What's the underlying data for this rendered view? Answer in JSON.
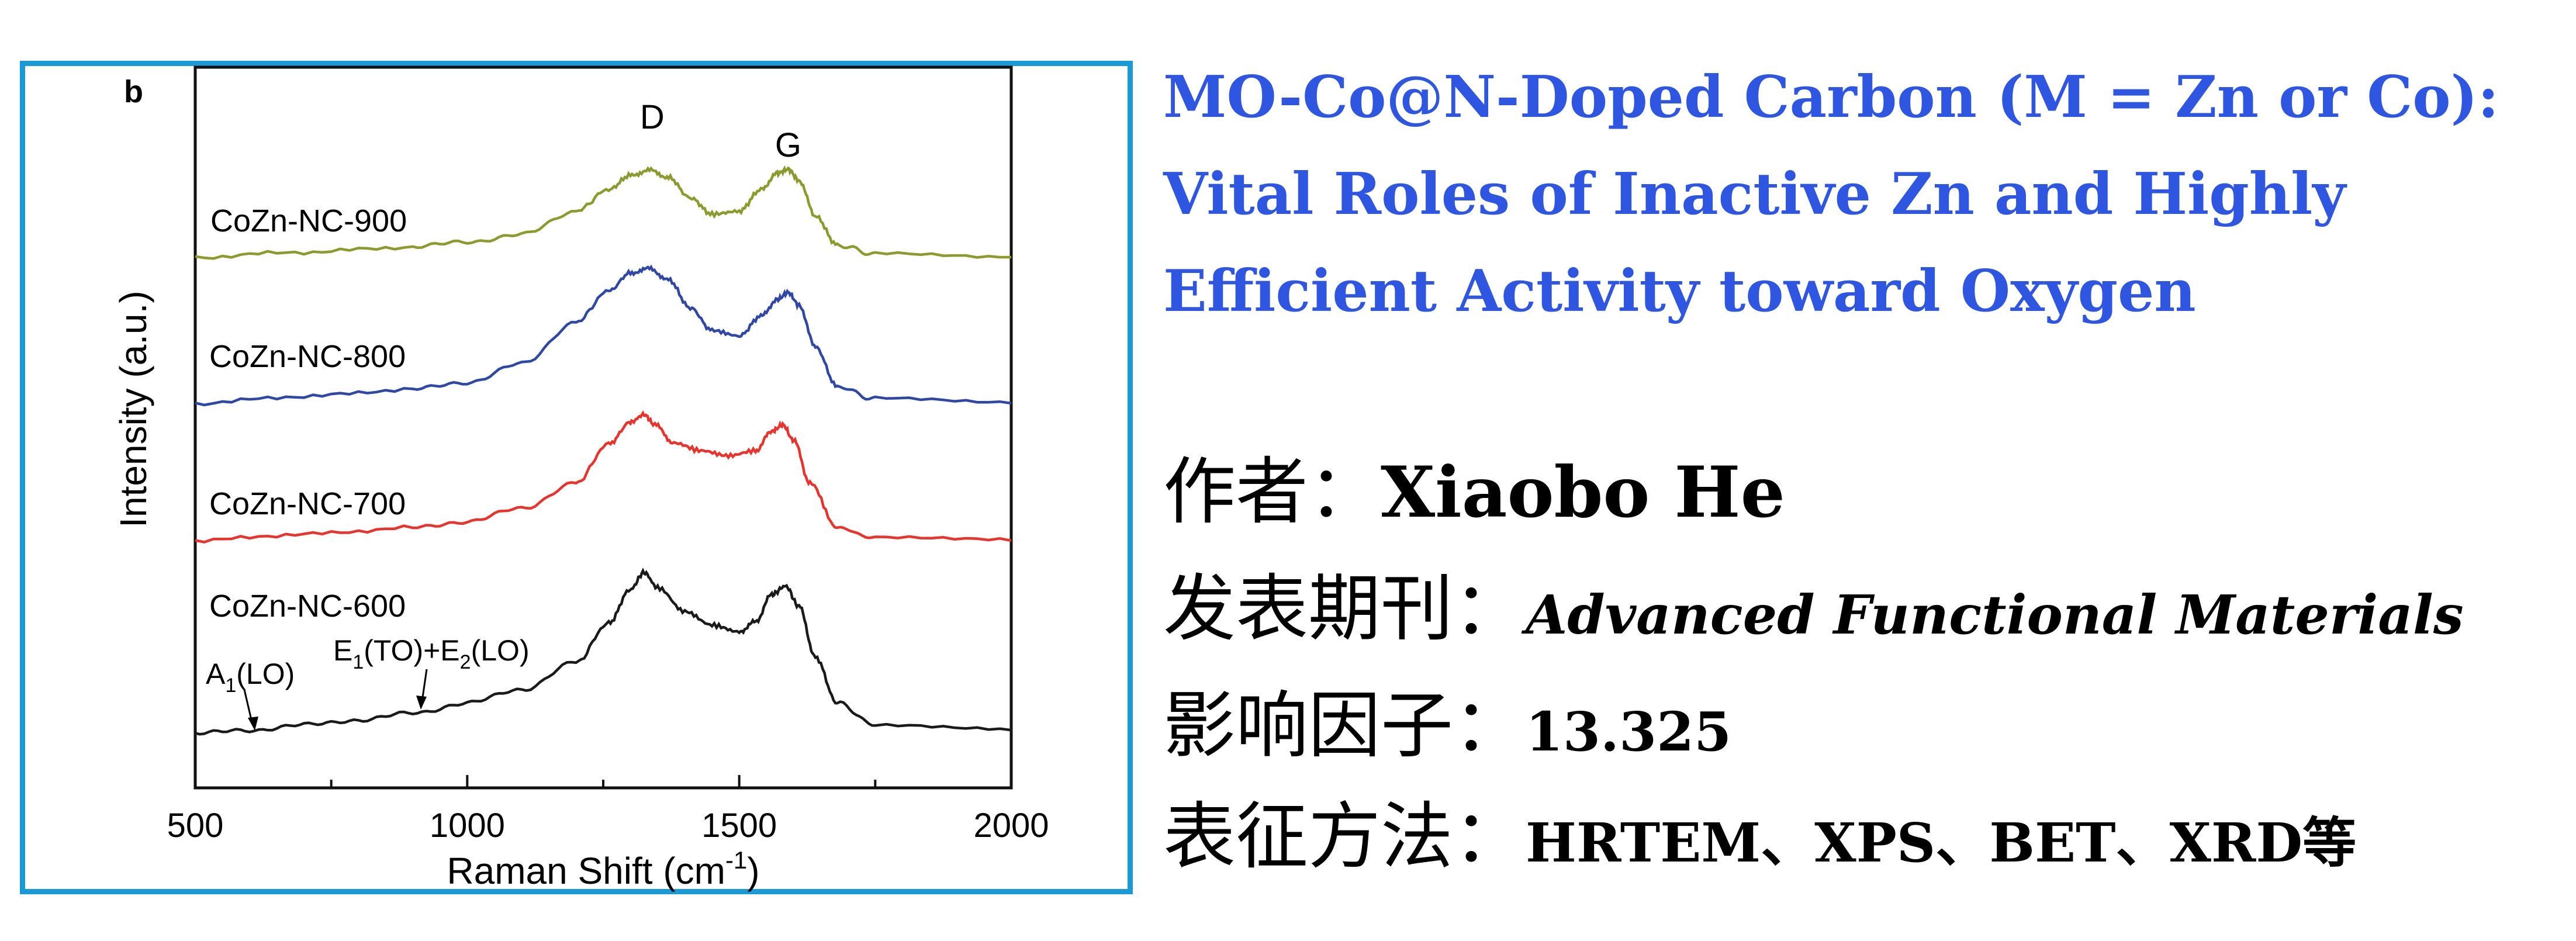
{
  "chart_data": {
    "type": "line",
    "panel_label": "b",
    "xlabel": "Raman Shift (cm",
    "xlabel_sup": "-1",
    "xlabel_tail": ")",
    "ylabel": "Intensity (a.u.)",
    "xlim": [
      500,
      2000
    ],
    "xticks": [
      "500",
      "1000",
      "1500",
      "2000"
    ],
    "peak_labels": [
      {
        "text": "D",
        "x": 1340
      },
      {
        "text": "G",
        "x": 1590
      }
    ],
    "annotation_1": {
      "main": "A",
      "sub": "1",
      "tail": "(LO)",
      "x": 600
    },
    "annotation_2": {
      "p1": "E",
      "s1": "1",
      "p2": "(TO)+E",
      "s2": "2",
      "p3": "(LO)",
      "x": 920
    },
    "series": [
      {
        "name": "CoZn-NC-900",
        "color": "#8c9a2e",
        "x": [
          500,
          700,
          900,
          1000,
          1100,
          1200,
          1260,
          1300,
          1335,
          1370,
          1410,
          1450,
          1500,
          1540,
          1570,
          1590,
          1610,
          1640,
          1680,
          1750,
          2000
        ],
        "y": [
          0.0,
          0.05,
          0.1,
          0.15,
          0.22,
          0.45,
          0.66,
          0.8,
          0.85,
          0.78,
          0.58,
          0.42,
          0.45,
          0.66,
          0.82,
          0.86,
          0.75,
          0.4,
          0.12,
          0.03,
          0.0
        ]
      },
      {
        "name": "CoZn-NC-800",
        "color": "#2f47a6",
        "x": [
          500,
          700,
          900,
          1000,
          1100,
          1200,
          1260,
          1300,
          1335,
          1370,
          1410,
          1450,
          1500,
          1540,
          1570,
          1590,
          1610,
          1640,
          1680,
          1750,
          2000
        ],
        "y": [
          0.0,
          0.05,
          0.1,
          0.15,
          0.28,
          0.58,
          0.8,
          0.93,
          0.96,
          0.88,
          0.68,
          0.52,
          0.48,
          0.62,
          0.74,
          0.79,
          0.7,
          0.4,
          0.12,
          0.03,
          0.0
        ]
      },
      {
        "name": "CoZn-NC-700",
        "color": "#e8342c",
        "x": [
          500,
          700,
          900,
          1000,
          1100,
          1200,
          1260,
          1300,
          1325,
          1345,
          1380,
          1430,
          1480,
          1530,
          1560,
          1580,
          1600,
          1630,
          1680,
          1750,
          2000
        ],
        "y": [
          0.0,
          0.05,
          0.1,
          0.15,
          0.25,
          0.45,
          0.75,
          0.92,
          0.98,
          0.9,
          0.76,
          0.7,
          0.66,
          0.7,
          0.85,
          0.9,
          0.78,
          0.45,
          0.1,
          0.02,
          0.0
        ]
      },
      {
        "name": "CoZn-NC-600",
        "color": "#1a1a1a",
        "x": [
          500,
          600,
          700,
          800,
          900,
          1000,
          1100,
          1200,
          1260,
          1300,
          1325,
          1350,
          1400,
          1450,
          1500,
          1530,
          1560,
          1585,
          1610,
          1640,
          1680,
          1750,
          2000
        ],
        "y": [
          0.0,
          0.02,
          0.05,
          0.08,
          0.12,
          0.18,
          0.26,
          0.42,
          0.65,
          0.85,
          0.95,
          0.86,
          0.72,
          0.64,
          0.6,
          0.66,
          0.82,
          0.87,
          0.75,
          0.45,
          0.18,
          0.05,
          0.02
        ]
      }
    ]
  },
  "info": {
    "title": "MO-Co@N-Doped Carbon (M = Zn or Co): Vital Roles of Inactive Zn and Highly Efficient Activity toward Oxygen",
    "author_label": "作者：",
    "author_value": "Xiaobo He",
    "journal_label": "发表期刊：",
    "journal_value": "Advanced Functional Materials",
    "impact_label": "影响因子：",
    "impact_value": "13.325",
    "methods_label": "表征方法：",
    "methods_value": "HRTEM、XPS、BET、XRD等"
  },
  "colors": {
    "frame": "#1a9ad6",
    "title": "#2f56e0"
  }
}
